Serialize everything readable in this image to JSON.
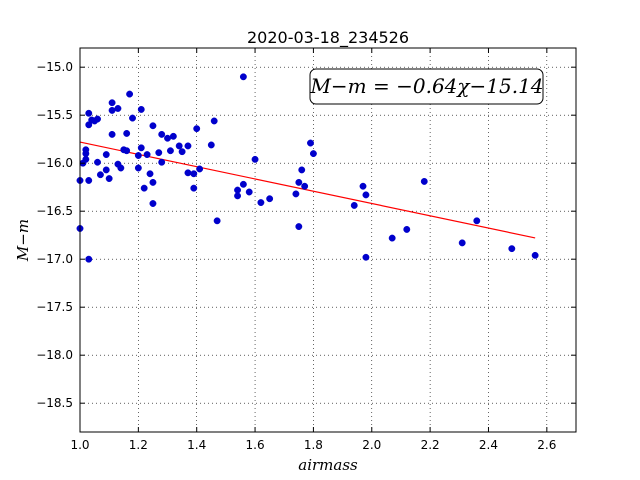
{
  "chart_data": {
    "type": "scatter",
    "title": "2020-03-18_234526",
    "xlabel": "airmass",
    "ylabel": "M−m",
    "xlim": [
      1.0,
      2.7
    ],
    "ylim": [
      -18.8,
      -14.8
    ],
    "y_inverted": false,
    "grid": true,
    "x_ticks": [
      1.0,
      1.2,
      1.4,
      1.6,
      1.8,
      2.0,
      2.2,
      2.4,
      2.6
    ],
    "x_tick_labels": [
      "1.0",
      "1.2",
      "1.4",
      "1.6",
      "1.8",
      "2.0",
      "2.2",
      "2.4",
      "2.6"
    ],
    "y_ticks": [
      -15.0,
      -15.5,
      -16.0,
      -16.5,
      -17.0,
      -17.5,
      -18.0,
      -18.5
    ],
    "y_tick_labels": [
      "−15.0",
      "−15.5",
      "−16.0",
      "−16.5",
      "−17.0",
      "−17.5",
      "−18.0",
      "−18.5"
    ],
    "annotation": "M−m = −0.64χ−15.14",
    "annotation_placement": "top-right",
    "fit": {
      "slope": -0.64,
      "intercept": -15.14,
      "x_range": [
        1.0,
        2.56
      ],
      "color": "#ff0000"
    },
    "series": [
      {
        "color": "#0000cc",
        "points": [
          [
            1.0,
            -16.68
          ],
          [
            1.0,
            -16.18
          ],
          [
            1.01,
            -16.0
          ],
          [
            1.02,
            -15.9
          ],
          [
            1.02,
            -15.86
          ],
          [
            1.02,
            -15.96
          ],
          [
            1.03,
            -15.48
          ],
          [
            1.03,
            -15.6
          ],
          [
            1.03,
            -16.18
          ],
          [
            1.03,
            -17.0
          ],
          [
            1.04,
            -15.55
          ],
          [
            1.05,
            -15.56
          ],
          [
            1.06,
            -15.54
          ],
          [
            1.06,
            -15.99
          ],
          [
            1.07,
            -16.12
          ],
          [
            1.09,
            -15.91
          ],
          [
            1.09,
            -16.07
          ],
          [
            1.1,
            -16.16
          ],
          [
            1.11,
            -15.45
          ],
          [
            1.11,
            -15.37
          ],
          [
            1.11,
            -15.7
          ],
          [
            1.13,
            -16.01
          ],
          [
            1.13,
            -15.43
          ],
          [
            1.14,
            -16.05
          ],
          [
            1.15,
            -15.86
          ],
          [
            1.16,
            -15.87
          ],
          [
            1.16,
            -15.69
          ],
          [
            1.17,
            -15.28
          ],
          [
            1.18,
            -15.53
          ],
          [
            1.2,
            -15.92
          ],
          [
            1.2,
            -16.05
          ],
          [
            1.21,
            -15.44
          ],
          [
            1.21,
            -15.84
          ],
          [
            1.22,
            -16.26
          ],
          [
            1.23,
            -15.91
          ],
          [
            1.24,
            -16.11
          ],
          [
            1.25,
            -16.42
          ],
          [
            1.25,
            -16.2
          ],
          [
            1.25,
            -15.61
          ],
          [
            1.27,
            -15.89
          ],
          [
            1.28,
            -15.7
          ],
          [
            1.28,
            -15.99
          ],
          [
            1.3,
            -15.74
          ],
          [
            1.31,
            -15.87
          ],
          [
            1.32,
            -15.72
          ],
          [
            1.34,
            -15.82
          ],
          [
            1.35,
            -15.88
          ],
          [
            1.37,
            -15.82
          ],
          [
            1.37,
            -16.1
          ],
          [
            1.39,
            -16.11
          ],
          [
            1.39,
            -16.26
          ],
          [
            1.4,
            -15.64
          ],
          [
            1.41,
            -16.06
          ],
          [
            1.45,
            -15.81
          ],
          [
            1.46,
            -15.56
          ],
          [
            1.47,
            -16.6
          ],
          [
            1.54,
            -16.34
          ],
          [
            1.54,
            -16.28
          ],
          [
            1.56,
            -15.1
          ],
          [
            1.56,
            -16.22
          ],
          [
            1.58,
            -16.3
          ],
          [
            1.6,
            -15.96
          ],
          [
            1.62,
            -16.41
          ],
          [
            1.65,
            -16.37
          ],
          [
            1.74,
            -16.32
          ],
          [
            1.75,
            -16.2
          ],
          [
            1.75,
            -16.66
          ],
          [
            1.76,
            -16.07
          ],
          [
            1.77,
            -16.24
          ],
          [
            1.79,
            -15.79
          ],
          [
            1.8,
            -15.9
          ],
          [
            1.94,
            -16.44
          ],
          [
            1.97,
            -16.24
          ],
          [
            1.98,
            -16.33
          ],
          [
            1.98,
            -16.98
          ],
          [
            2.07,
            -16.78
          ],
          [
            2.12,
            -16.69
          ],
          [
            2.18,
            -16.19
          ],
          [
            2.31,
            -16.83
          ],
          [
            2.36,
            -16.6
          ],
          [
            2.48,
            -16.89
          ],
          [
            2.56,
            -16.96
          ]
        ]
      }
    ]
  }
}
